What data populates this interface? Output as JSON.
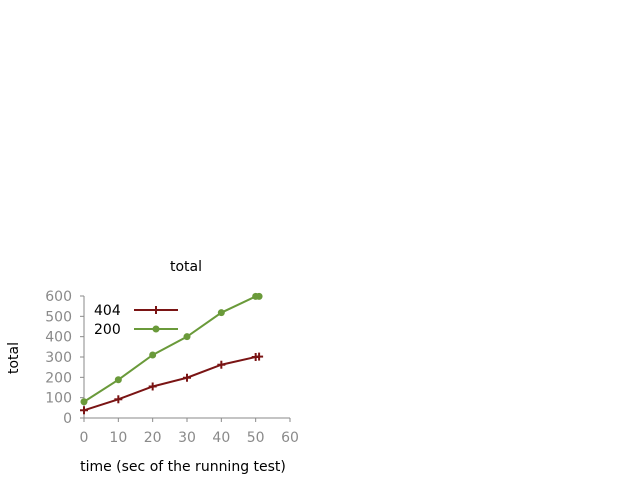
{
  "chart_data": {
    "type": "line",
    "title": "total",
    "xlabel": "time (sec of the running test)",
    "ylabel": "total",
    "xlim": [
      0,
      60
    ],
    "ylim": [
      0,
      600
    ],
    "xticks": [
      0,
      10,
      20,
      30,
      40,
      50,
      60
    ],
    "yticks": [
      0,
      100,
      200,
      300,
      400,
      500,
      600
    ],
    "grid": false,
    "legend_position": "top-left",
    "series": [
      {
        "name": "404",
        "color": "#7a1414",
        "marker": "plus",
        "x": [
          0,
          10,
          20,
          30,
          40,
          50,
          51
        ],
        "y": [
          38,
          92,
          155,
          198,
          262,
          300,
          302
        ]
      },
      {
        "name": "200",
        "color": "#6a9a3a",
        "marker": "circle",
        "x": [
          0,
          10,
          20,
          30,
          40,
          50,
          51
        ],
        "y": [
          80,
          188,
          310,
          400,
          518,
          598,
          598
        ]
      }
    ]
  }
}
